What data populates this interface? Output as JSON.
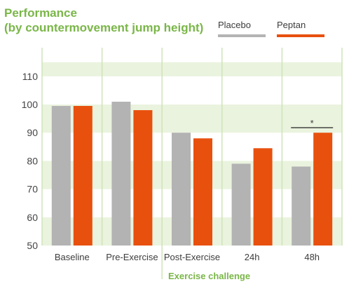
{
  "title_lines": [
    "Performance",
    "(by countermovement jump height)"
  ],
  "colors": {
    "placebo": "#b3b3b3",
    "peptan": "#e8500e",
    "accent": "#7ab648",
    "band": "#eaf3de"
  },
  "chart_data": {
    "type": "bar",
    "title": "Performance (by countermovement jump height)",
    "categories": [
      "Baseline",
      "Pre-Exercise",
      "Post-Exercise",
      "24h",
      "48h"
    ],
    "series": [
      {
        "name": "Placebo",
        "color": "#b3b3b3",
        "values": [
          99.5,
          101,
          90,
          79,
          78
        ]
      },
      {
        "name": "Peptan",
        "color": "#e8500e",
        "values": [
          99.5,
          98,
          88,
          84.5,
          90
        ]
      }
    ],
    "ylim": [
      50,
      115
    ],
    "yticks": [
      50,
      60,
      70,
      80,
      90,
      100,
      110
    ],
    "grid": "horizontal bands",
    "legend": "top-right",
    "annotations": [
      {
        "text": "*",
        "category": "48h",
        "note": "significance bracket"
      },
      {
        "text": "Exercise challenge",
        "categories": [
          "Post-Exercise",
          "24h",
          "48h"
        ]
      }
    ]
  }
}
